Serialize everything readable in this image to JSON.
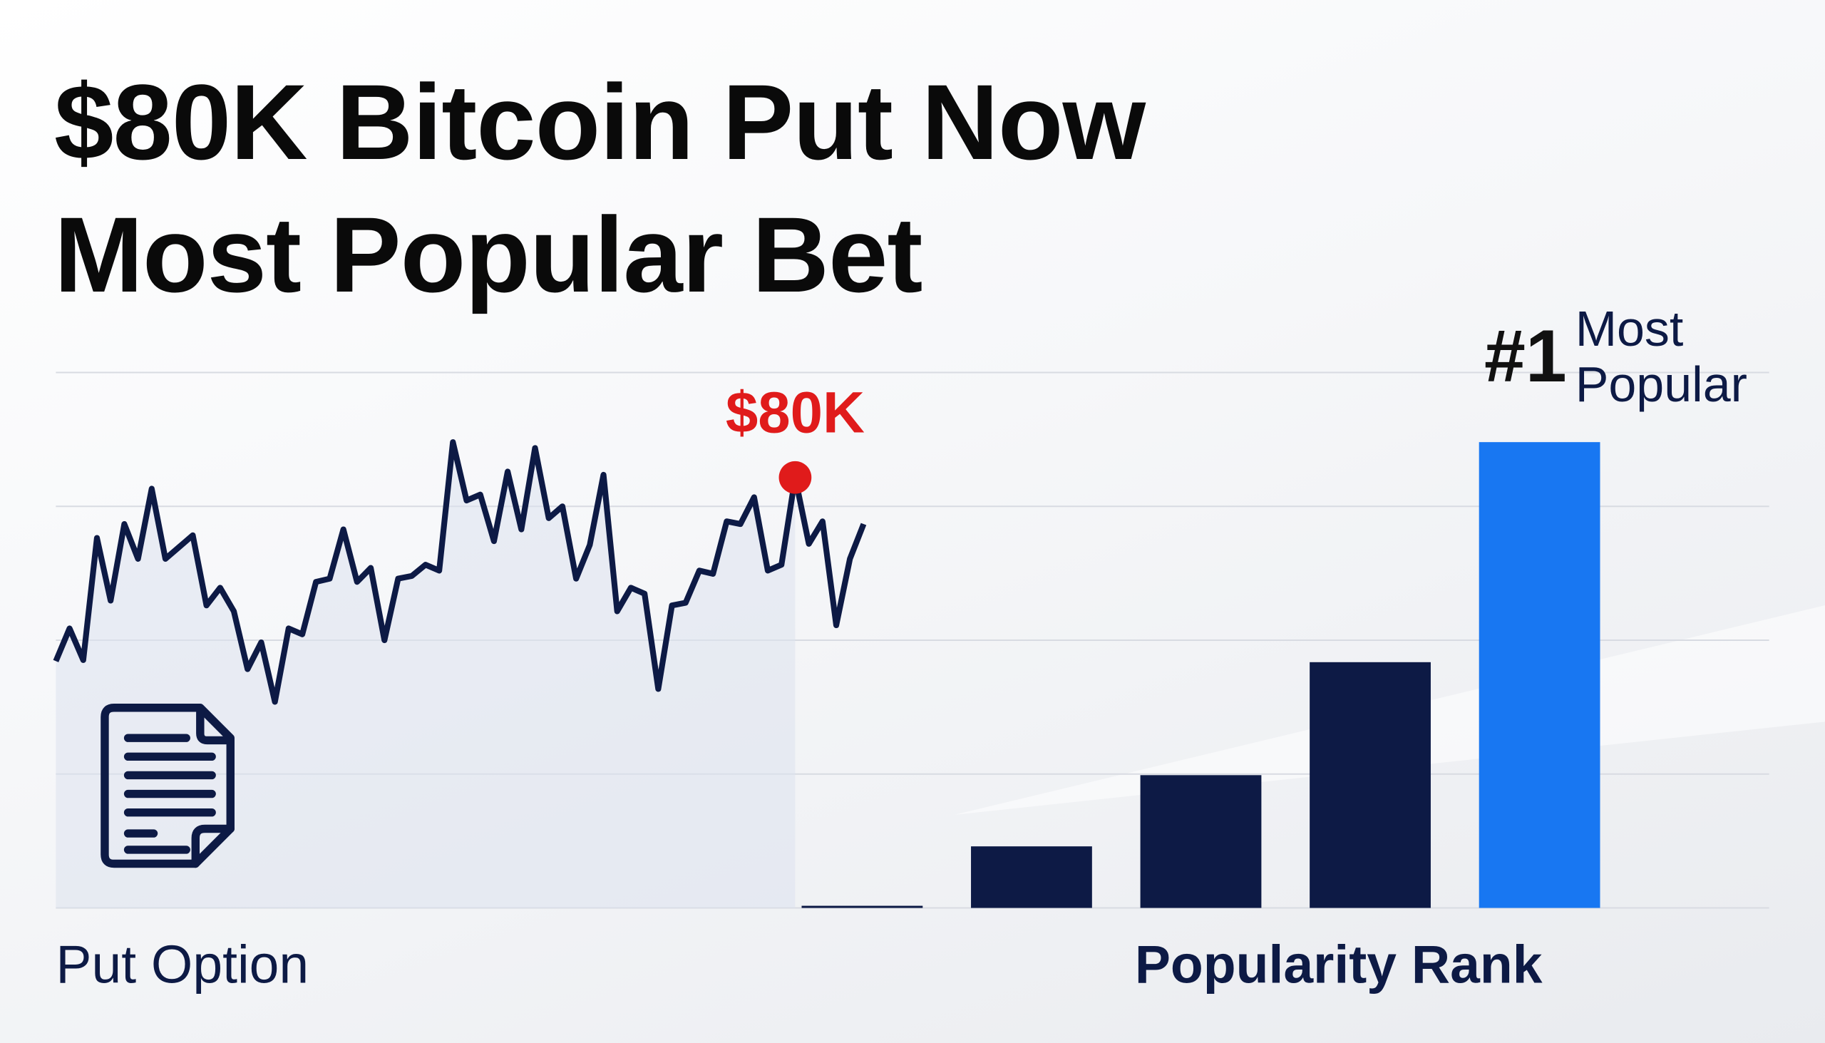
{
  "title": "$80K Bitcoin Put Now Most Popular Bet",
  "chart_data": [
    {
      "type": "line",
      "annotation": "$80K",
      "highlight_index": 54,
      "color": "#0d1a45",
      "highlight_color": "#e01b1b",
      "ylim": [
        0,
        100
      ],
      "values": [
        46.1,
        52.2,
        46.3,
        69.1,
        57.4,
        71.7,
        65.2,
        78.3,
        65.2,
        67.4,
        69.6,
        56.5,
        59.8,
        55.4,
        44.6,
        49.6,
        38.5,
        52.2,
        51.1,
        60.9,
        61.5,
        70.7,
        60.9,
        63.5,
        50.0,
        61.5,
        62.0,
        64.1,
        63.0,
        87.0,
        76.1,
        77.2,
        68.5,
        81.5,
        70.7,
        85.9,
        72.8,
        75.0,
        61.5,
        67.8,
        80.9,
        55.4,
        59.8,
        58.7,
        40.9,
        56.5,
        57.0,
        63.0,
        62.4,
        72.2,
        71.7,
        76.7,
        63.0,
        64.1,
        80.4,
        68.0,
        72.2,
        52.8,
        65.2,
        71.7
      ],
      "x_label": "Put Option"
    },
    {
      "type": "bar",
      "categories": [
        null,
        null,
        null,
        null,
        null
      ],
      "values": [
        0.4,
        11.5,
        24.8,
        45.9,
        87.0
      ],
      "colors": [
        "#0d1a45",
        "#0d1a45",
        "#0d1a45",
        "#0d1a45",
        "#1877f2"
      ],
      "ylim": [
        0,
        100
      ],
      "yticks": [
        0,
        25,
        50,
        75,
        100
      ],
      "grid": true,
      "x_label": "Popularity Rank",
      "annotation_rank": "#1",
      "annotation": "Most Popular"
    }
  ]
}
